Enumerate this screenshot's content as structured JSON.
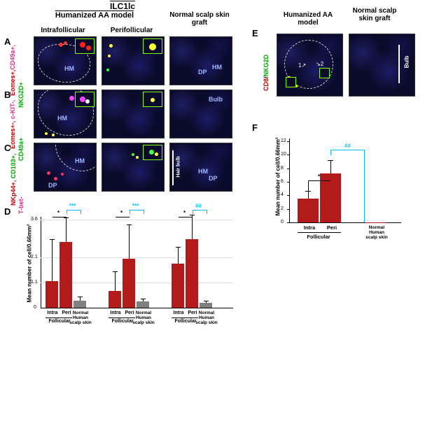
{
  "headers": {
    "ilc": "ILC1lc",
    "humanized": "Humanized AA model",
    "normal_graft": "Normal scalp skin graft",
    "intra": "Intrafollicular",
    "peri": "Perifollicular",
    "humanized_e": "Humanized AA model",
    "normal_e": "Normal scalp skin graft"
  },
  "panels": {
    "A": "A",
    "B": "B",
    "C": "C",
    "D": "D",
    "E": "E",
    "F": "F"
  },
  "markers": {
    "A": [
      {
        "text": "Eomes+,",
        "color": "#c00000"
      },
      {
        "text": "CD49a+,",
        "color": "#d63384"
      },
      {
        "text": "NKG2D+",
        "color": "#00aa00"
      }
    ],
    "B": [
      {
        "text": "Eomes+-,",
        "color": "#c00000"
      },
      {
        "text": "c-KIT-,",
        "color": "#d63384"
      },
      {
        "text": "CD49a+",
        "color": "#00aa00"
      }
    ],
    "C": [
      {
        "text": "NKp44+,",
        "color": "#c00000"
      },
      {
        "text": "CD103+,",
        "color": "#00aa00"
      },
      {
        "text": "T-bet-",
        "color": "#d63384"
      }
    ],
    "E": [
      {
        "text": "CD8",
        "color": "#c00000"
      },
      {
        "text": "/",
        "color": "#000"
      },
      {
        "text": "NKG2D",
        "color": "#00aa00"
      }
    ]
  },
  "micro_labels": {
    "HM": "HM",
    "DP": "DP",
    "Bulb": "Bulb",
    "HairBulb": "Hair bulb"
  },
  "chartD": {
    "ylabel": "Mean number of cell/0.66mm²",
    "ymax": 3.6,
    "yticks": [
      "0",
      "1.1",
      "2.1",
      "3.6"
    ],
    "groups": [
      {
        "bars": [
          1.1,
          2.7,
          0.3
        ],
        "err": [
          1.7,
          1.0,
          0.15
        ],
        "sig_inner": "*",
        "sig_outer": "***"
      },
      {
        "bars": [
          0.7,
          2.0,
          0.25
        ],
        "err": [
          0.8,
          1.4,
          0.12
        ],
        "sig_inner": "*",
        "sig_outer": "***"
      },
      {
        "bars": [
          1.8,
          2.8,
          0.2
        ],
        "err": [
          0.7,
          1.0,
          0.1
        ],
        "sig_inner": "*",
        "sig_outer": "##"
      }
    ],
    "xlabels": [
      "Intra",
      "Peri",
      "Normal Human scalp skin"
    ],
    "follicular": "Follicular",
    "bar_color": "#b31b1b",
    "bar_color_norm": "#808080"
  },
  "chartF": {
    "ylabel": "Mean number of cell/0.66mm²",
    "ymax": 12,
    "yticks": [
      "0",
      "2",
      "4",
      "6",
      "8",
      "10",
      "12"
    ],
    "bars": [
      3.5,
      7.2,
      0.0
    ],
    "err": [
      1.2,
      2.0,
      0.0
    ],
    "sig_inner": "*",
    "sig_outer": "##",
    "xlabels": [
      "Intra",
      "Peri",
      "Normal Human scalp skin"
    ],
    "follicular": "Follicular",
    "bar_color": "#b31b1b"
  }
}
